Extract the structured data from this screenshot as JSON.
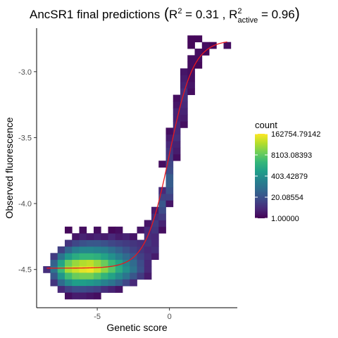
{
  "chart_data": {
    "type": "heatmap",
    "title": {
      "prefix": "AncSR1 final predictions",
      "r2_symbol": "R",
      "r2_sup": "2",
      "r2_value": " = 0.31 , ",
      "r2a_symbol": "R",
      "r2a_sup": "2",
      "r2a_sub": "active",
      "r2a_value": " = 0.96"
    },
    "xlabel": "Genetic score",
    "ylabel": "Observed fluorescence",
    "xlim": [
      -9.2,
      4.7
    ],
    "ylim": [
      -4.79,
      -2.67
    ],
    "x_ticks": [
      -5,
      0
    ],
    "x_tick_labels": [
      "-5",
      "0"
    ],
    "y_ticks": [
      -3.0,
      -3.5,
      -4.0,
      -4.5
    ],
    "y_tick_labels": [
      "-3.0",
      "-3.5",
      "-4.0",
      "-4.5"
    ],
    "grid": false,
    "bin_width_x": 0.5,
    "bin_height_y": 0.05,
    "color_scale": "viridis",
    "color_min": 1.0,
    "color_max": 162754.79142,
    "colors": {
      "fit_line": "#e8181e",
      "axis": "#000000"
    },
    "legend": {
      "title": "count",
      "placement": "right",
      "labels": [
        "162754.79142",
        "8103.08393",
        "403.42879",
        "20.08554",
        "1.00000"
      ],
      "values": [
        162754.79142,
        8103.08393,
        403.42879,
        20.08554,
        1.0
      ]
    },
    "fit_curve": {
      "form": "logistic",
      "lower": -4.49,
      "upper": -2.76,
      "midpoint": 0.0,
      "slope": 1.2
    },
    "bins": [
      [
        -8.5,
        -4.5,
        0.7
      ],
      [
        -8.0,
        -4.5,
        2.0
      ],
      [
        -7.5,
        -4.5,
        3.5
      ],
      [
        -7.0,
        -4.5,
        4.5
      ],
      [
        -6.5,
        -4.5,
        4.8
      ],
      [
        -6.0,
        -4.5,
        5.0
      ],
      [
        -5.5,
        -4.5,
        5.1
      ],
      [
        -5.0,
        -4.5,
        4.8
      ],
      [
        -4.5,
        -4.5,
        4.3
      ],
      [
        -4.0,
        -4.5,
        3.8
      ],
      [
        -3.5,
        -4.5,
        3.2
      ],
      [
        -3.0,
        -4.5,
        2.6
      ],
      [
        -2.5,
        -4.5,
        2.0
      ],
      [
        -2.0,
        -4.5,
        1.3
      ],
      [
        -1.5,
        -4.5,
        0.6
      ],
      [
        -8.0,
        -4.45,
        1.6
      ],
      [
        -7.5,
        -4.45,
        3.0
      ],
      [
        -7.0,
        -4.45,
        4.0
      ],
      [
        -6.5,
        -4.45,
        4.4
      ],
      [
        -6.0,
        -4.45,
        4.6
      ],
      [
        -5.5,
        -4.45,
        4.7
      ],
      [
        -5.0,
        -4.45,
        4.4
      ],
      [
        -4.5,
        -4.45,
        4.0
      ],
      [
        -4.0,
        -4.45,
        3.5
      ],
      [
        -3.5,
        -4.45,
        3.0
      ],
      [
        -3.0,
        -4.45,
        2.4
      ],
      [
        -2.5,
        -4.45,
        1.8
      ],
      [
        -2.0,
        -4.45,
        1.2
      ],
      [
        -1.5,
        -4.45,
        0.6
      ],
      [
        -8.0,
        -4.55,
        1.4
      ],
      [
        -7.5,
        -4.55,
        2.7
      ],
      [
        -7.0,
        -4.55,
        3.6
      ],
      [
        -6.5,
        -4.55,
        4.0
      ],
      [
        -6.0,
        -4.55,
        4.1
      ],
      [
        -5.5,
        -4.55,
        4.1
      ],
      [
        -5.0,
        -4.55,
        3.8
      ],
      [
        -4.5,
        -4.55,
        3.4
      ],
      [
        -4.0,
        -4.55,
        3.0
      ],
      [
        -3.5,
        -4.55,
        2.5
      ],
      [
        -3.0,
        -4.55,
        2.0
      ],
      [
        -2.5,
        -4.55,
        1.4
      ],
      [
        -2.0,
        -4.55,
        0.9
      ],
      [
        -1.5,
        -4.55,
        0.4
      ],
      [
        -8.0,
        -4.4,
        0.9
      ],
      [
        -7.5,
        -4.4,
        2.0
      ],
      [
        -7.0,
        -4.4,
        2.8
      ],
      [
        -6.5,
        -4.4,
        3.2
      ],
      [
        -6.0,
        -4.4,
        3.4
      ],
      [
        -5.5,
        -4.4,
        3.4
      ],
      [
        -5.0,
        -4.4,
        3.3
      ],
      [
        -4.5,
        -4.4,
        3.0
      ],
      [
        -4.0,
        -4.4,
        2.6
      ],
      [
        -3.5,
        -4.4,
        2.2
      ],
      [
        -3.0,
        -4.4,
        1.8
      ],
      [
        -2.5,
        -4.4,
        1.4
      ],
      [
        -2.0,
        -4.4,
        1.0
      ],
      [
        -1.5,
        -4.4,
        0.7
      ],
      [
        -1.0,
        -4.4,
        0.4
      ],
      [
        -8.0,
        -4.6,
        0.8
      ],
      [
        -7.5,
        -4.6,
        1.8
      ],
      [
        -7.0,
        -4.6,
        2.5
      ],
      [
        -6.5,
        -4.6,
        2.9
      ],
      [
        -6.0,
        -4.6,
        2.9
      ],
      [
        -5.5,
        -4.6,
        2.8
      ],
      [
        -5.0,
        -4.6,
        2.6
      ],
      [
        -4.5,
        -4.6,
        2.3
      ],
      [
        -4.0,
        -4.6,
        2.0
      ],
      [
        -3.5,
        -4.6,
        1.6
      ],
      [
        -3.0,
        -4.6,
        1.1
      ],
      [
        -2.5,
        -4.6,
        0.6
      ],
      [
        -7.5,
        -4.35,
        1.0
      ],
      [
        -7.0,
        -4.35,
        1.7
      ],
      [
        -6.5,
        -4.35,
        2.2
      ],
      [
        -6.0,
        -4.35,
        2.4
      ],
      [
        -5.5,
        -4.35,
        2.4
      ],
      [
        -5.0,
        -4.35,
        2.3
      ],
      [
        -4.5,
        -4.35,
        2.2
      ],
      [
        -4.0,
        -4.35,
        1.9
      ],
      [
        -3.5,
        -4.35,
        1.6
      ],
      [
        -3.0,
        -4.35,
        1.3
      ],
      [
        -2.5,
        -4.35,
        1.0
      ],
      [
        -2.0,
        -4.35,
        0.8
      ],
      [
        -1.5,
        -4.35,
        0.6
      ],
      [
        -1.0,
        -4.35,
        0.7
      ],
      [
        -7.5,
        -4.65,
        0.6
      ],
      [
        -7.0,
        -4.65,
        1.0
      ],
      [
        -6.5,
        -4.65,
        1.2
      ],
      [
        -6.0,
        -4.65,
        1.2
      ],
      [
        -5.5,
        -4.65,
        1.1
      ],
      [
        -5.0,
        -4.65,
        1.0
      ],
      [
        -4.5,
        -4.65,
        0.7
      ],
      [
        -4.0,
        -4.65,
        0.5
      ],
      [
        -3.5,
        -4.65,
        0.3
      ],
      [
        -7.0,
        -4.7,
        0.2
      ],
      [
        -6.5,
        -4.7,
        0.4
      ],
      [
        -6.0,
        -4.7,
        0.4
      ],
      [
        -5.5,
        -4.7,
        0.3
      ],
      [
        -5.0,
        -4.7,
        0.2
      ],
      [
        -7.0,
        -4.3,
        0.8
      ],
      [
        -6.5,
        -4.3,
        1.1
      ],
      [
        -6.0,
        -4.3,
        1.3
      ],
      [
        -5.5,
        -4.3,
        1.4
      ],
      [
        -5.0,
        -4.3,
        1.4
      ],
      [
        -4.5,
        -4.3,
        1.3
      ],
      [
        -4.0,
        -4.3,
        1.1
      ],
      [
        -3.5,
        -4.3,
        1.0
      ],
      [
        -3.0,
        -4.3,
        0.9
      ],
      [
        -2.5,
        -4.3,
        0.8
      ],
      [
        -2.0,
        -4.3,
        0.7
      ],
      [
        -1.5,
        -4.3,
        0.8
      ],
      [
        -1.0,
        -4.3,
        0.6
      ],
      [
        -6.5,
        -4.25,
        0.3
      ],
      [
        -6.0,
        -4.25,
        0.5
      ],
      [
        -5.5,
        -4.25,
        0.4
      ],
      [
        -5.0,
        -4.25,
        0.5
      ],
      [
        -4.5,
        -4.25,
        0.4
      ],
      [
        -4.0,
        -4.25,
        0.6
      ],
      [
        -3.5,
        -4.25,
        0.4
      ],
      [
        -3.0,
        -4.25,
        0.5
      ],
      [
        -2.5,
        -4.25,
        0.3
      ],
      [
        -1.5,
        -4.25,
        0.7
      ],
      [
        -1.0,
        -4.25,
        0.6
      ],
      [
        -7.0,
        -4.2,
        0.1
      ],
      [
        -6.0,
        -4.2,
        0.2
      ],
      [
        -5.0,
        -4.2,
        0.2
      ],
      [
        -4.0,
        -4.2,
        0.1
      ],
      [
        -3.5,
        -4.2,
        0.2
      ],
      [
        -2.0,
        -4.2,
        0.3
      ],
      [
        -1.5,
        -4.2,
        0.6
      ],
      [
        -1.0,
        -4.2,
        0.8
      ],
      [
        -0.5,
        -4.2,
        0.2
      ],
      [
        -1.5,
        -4.15,
        0.3
      ],
      [
        -1.0,
        -4.15,
        0.9
      ],
      [
        -0.5,
        -4.15,
        0.5
      ],
      [
        -1.0,
        -4.1,
        0.7
      ],
      [
        -0.5,
        -4.1,
        0.9
      ],
      [
        -1.0,
        -4.05,
        0.4
      ],
      [
        -0.5,
        -4.05,
        1.2
      ],
      [
        -0.5,
        -4.0,
        1.4
      ],
      [
        0.0,
        -4.0,
        0.3
      ],
      [
        -0.5,
        -3.95,
        1.0
      ],
      [
        0.0,
        -3.95,
        1.0
      ],
      [
        -0.5,
        -3.9,
        0.6
      ],
      [
        0.0,
        -3.9,
        1.3
      ],
      [
        0.0,
        -3.85,
        1.5
      ],
      [
        0.0,
        -3.8,
        1.5
      ],
      [
        0.0,
        -3.75,
        1.2
      ],
      [
        -0.5,
        -3.7,
        0.2
      ],
      [
        0.0,
        -3.7,
        1.1
      ],
      [
        0.0,
        -3.65,
        0.9
      ],
      [
        0.5,
        -3.65,
        0.2
      ],
      [
        0.0,
        -3.6,
        0.8
      ],
      [
        0.5,
        -3.6,
        0.4
      ],
      [
        0.0,
        -3.55,
        0.6
      ],
      [
        0.5,
        -3.55,
        0.5
      ],
      [
        0.0,
        -3.5,
        0.4
      ],
      [
        0.5,
        -3.5,
        0.7
      ],
      [
        0.0,
        -3.45,
        0.2
      ],
      [
        0.5,
        -3.45,
        0.6
      ],
      [
        0.5,
        -3.4,
        0.6
      ],
      [
        1.0,
        -3.4,
        0.2
      ],
      [
        0.5,
        -3.35,
        0.5
      ],
      [
        1.0,
        -3.35,
        0.4
      ],
      [
        0.5,
        -3.3,
        0.5
      ],
      [
        1.0,
        -3.3,
        0.5
      ],
      [
        0.5,
        -3.25,
        0.3
      ],
      [
        1.0,
        -3.25,
        0.6
      ],
      [
        0.5,
        -3.2,
        0.2
      ],
      [
        1.0,
        -3.2,
        0.7
      ],
      [
        1.0,
        -3.15,
        0.7
      ],
      [
        1.5,
        -3.15,
        0.2
      ],
      [
        1.0,
        -3.1,
        0.5
      ],
      [
        1.5,
        -3.1,
        0.3
      ],
      [
        1.0,
        -3.05,
        0.4
      ],
      [
        1.5,
        -3.05,
        0.2
      ],
      [
        1.0,
        -3.0,
        0.3
      ],
      [
        1.5,
        -3.0,
        0.2
      ],
      [
        1.5,
        -2.95,
        0.2
      ],
      [
        2.0,
        -2.95,
        0.1
      ],
      [
        1.5,
        -2.9,
        0.2
      ],
      [
        2.0,
        -2.9,
        0.2
      ],
      [
        2.0,
        -2.85,
        0.2
      ],
      [
        2.5,
        -2.85,
        0.1
      ],
      [
        1.5,
        -2.8,
        0.1
      ],
      [
        2.5,
        -2.8,
        0.2
      ],
      [
        3.0,
        -2.8,
        0.1
      ],
      [
        4.0,
        -2.8,
        0.2
      ],
      [
        1.5,
        -2.75,
        0.1
      ],
      [
        2.0,
        -2.75,
        0.1
      ]
    ]
  }
}
